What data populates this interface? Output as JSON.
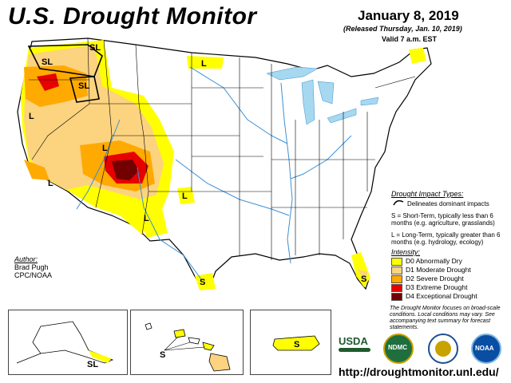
{
  "header": {
    "title": "U.S. Drought Monitor",
    "date": "January 8, 2019",
    "released": "(Released Thursday, Jan. 10, 2019)",
    "valid": "Valid 7 a.m. EST"
  },
  "legend": {
    "impact_heading": "Drought Impact Types:",
    "delineates": "Delineates dominant impacts",
    "short_term": "S = Short-Term, typically less than 6 months (e.g. agriculture, grasslands)",
    "long_term": "L = Long-Term, typically greater than 6 months (e.g. hydrology, ecology)",
    "intensity_heading": "Intensity:",
    "items": [
      {
        "label": "D0 Abnormally Dry",
        "color": "#ffff00"
      },
      {
        "label": "D1 Moderate Drought",
        "color": "#fcd37f"
      },
      {
        "label": "D2 Severe Drought",
        "color": "#ffaa00"
      },
      {
        "label": "D3 Extreme Drought",
        "color": "#e60000"
      },
      {
        "label": "D4 Exceptional Drought",
        "color": "#730000"
      }
    ]
  },
  "author": {
    "heading": "Author:",
    "name": "Brad Pugh",
    "org": "CPC/NOAA"
  },
  "footnote": "The Drought Monitor focuses on broad-scale conditions. Local conditions may vary. See accompanying text summary for forecast statements.",
  "url": "http://droughtmonitor.unl.edu/",
  "logos": {
    "usda": "USDA",
    "ndmc": "NDMC",
    "noaa": "NOAA"
  },
  "map_labels": {
    "sl": "SL",
    "s": "S",
    "l": "L"
  },
  "colors": {
    "water": "#a6d8ef",
    "d0": "#ffff00",
    "d1": "#fcd37f",
    "d2": "#ffaa00",
    "d3": "#e60000",
    "d4": "#730000",
    "border": "#000000",
    "river": "#3b8fd4"
  }
}
